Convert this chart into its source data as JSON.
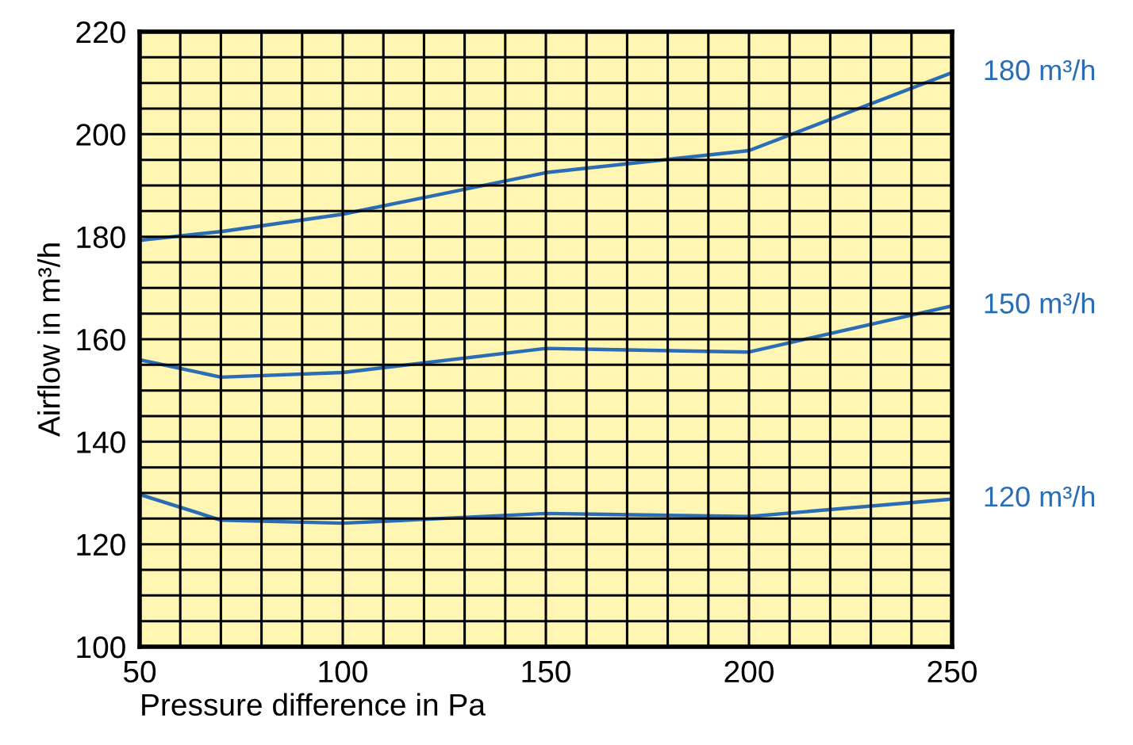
{
  "chart_data": {
    "type": "line",
    "xlabel": "Pressure difference in Pa",
    "ylabel": "Airflow in m³/h",
    "x": [
      50,
      70,
      100,
      150,
      200,
      250
    ],
    "series": [
      {
        "name": "180 m³/h",
        "color": "#2a6db5",
        "values": [
          179.3,
          181,
          184.4,
          192.5,
          196.8,
          212
        ]
      },
      {
        "name": "150 m³/h",
        "color": "#2a6db5",
        "values": [
          156,
          152.6,
          153.5,
          158.2,
          157.5,
          166.5
        ]
      },
      {
        "name": "120 m³/h",
        "color": "#2a6db5",
        "values": [
          129.7,
          124.7,
          124.1,
          126,
          125.4,
          128.8
        ]
      }
    ],
    "xlim": [
      50,
      250
    ],
    "ylim": [
      100,
      220
    ],
    "xticks": [
      50,
      {
        "value": 60,
        "label": null
      },
      {
        "value": 70,
        "label": null
      },
      {
        "value": 80,
        "label": null
      },
      {
        "value": 90,
        "label": null
      },
      100,
      {
        "value": 110,
        "label": null
      },
      {
        "value": 120,
        "label": null
      },
      {
        "value": 130,
        "label": null
      },
      {
        "value": 140,
        "label": null
      },
      150,
      {
        "value": 160,
        "label": null
      },
      {
        "value": 170,
        "label": null
      },
      {
        "value": 180,
        "label": null
      },
      {
        "value": 190,
        "label": null
      },
      200,
      {
        "value": 210,
        "label": null
      },
      {
        "value": 220,
        "label": null
      },
      {
        "value": 230,
        "label": null
      },
      {
        "value": 240,
        "label": null
      },
      250
    ],
    "yticks": [
      100,
      {
        "value": 105,
        "label": null
      },
      {
        "value": 110,
        "label": null
      },
      {
        "value": 115,
        "label": null
      },
      120,
      {
        "value": 125,
        "label": null
      },
      {
        "value": 130,
        "label": null
      },
      {
        "value": 135,
        "label": null
      },
      140,
      {
        "value": 145,
        "label": null
      },
      {
        "value": 150,
        "label": null
      },
      {
        "value": 155,
        "label": null
      },
      160,
      {
        "value": 165,
        "label": null
      },
      {
        "value": 170,
        "label": null
      },
      {
        "value": 175,
        "label": null
      },
      180,
      {
        "value": 185,
        "label": null
      },
      {
        "value": 190,
        "label": null
      },
      {
        "value": 195,
        "label": null
      },
      200,
      {
        "value": 205,
        "label": null
      },
      {
        "value": 210,
        "label": null
      },
      {
        "value": 215,
        "label": null
      },
      220
    ],
    "grid": true,
    "marker": "none",
    "line_style": "solid"
  }
}
